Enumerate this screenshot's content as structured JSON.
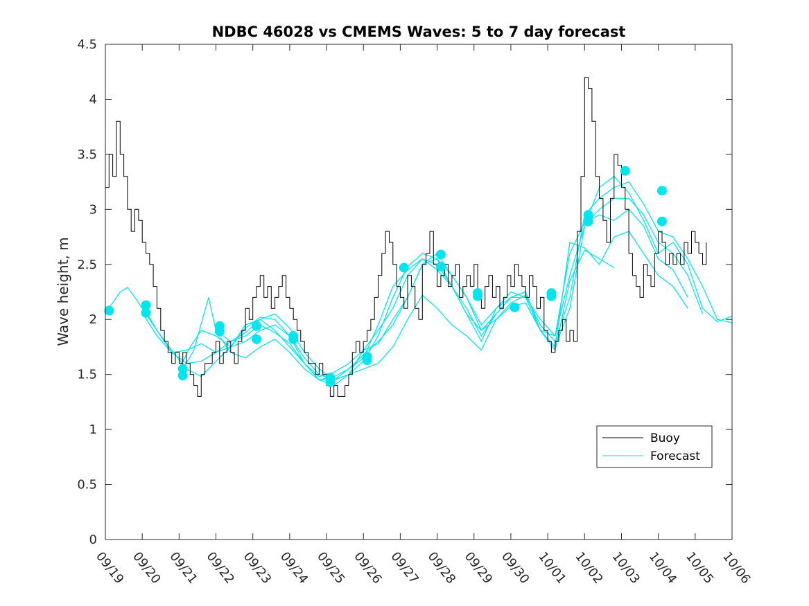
{
  "chart_data": {
    "type": "line",
    "title": "NDBC 46028 vs CMEMS Waves: 5 to 7 day forecast",
    "xlabel": "",
    "ylabel": "Wave height, m",
    "ylim": [
      0,
      4.5
    ],
    "xlim": [
      0,
      17
    ],
    "yticks": [
      0,
      0.5,
      1,
      1.5,
      2,
      2.5,
      3,
      3.5,
      4,
      4.5
    ],
    "ytick_labels": [
      "0",
      "0.5",
      "1",
      "1.5",
      "2",
      "2.5",
      "3",
      "3.5",
      "4",
      "4.5"
    ],
    "xtick_labels": [
      "09/19",
      "09/20",
      "09/21",
      "09/22",
      "09/23",
      "09/24",
      "09/25",
      "09/26",
      "09/27",
      "09/28",
      "09/29",
      "09/30",
      "10/01",
      "10/02",
      "10/03",
      "10/04",
      "10/05",
      "10/06"
    ],
    "grid": false,
    "legend": {
      "position": "lower-right",
      "entries": [
        "Buoy",
        "Forecast"
      ]
    },
    "colors": {
      "buoy": "#000000",
      "forecast": "#00e6ee"
    },
    "buoy": {
      "name": "Buoy",
      "x": [
        0.0,
        0.1,
        0.2,
        0.3,
        0.4,
        0.5,
        0.6,
        0.7,
        0.8,
        0.9,
        1.0,
        1.1,
        1.2,
        1.3,
        1.4,
        1.5,
        1.6,
        1.7,
        1.8,
        1.9,
        2.0,
        2.1,
        2.2,
        2.3,
        2.4,
        2.5,
        2.6,
        2.7,
        2.8,
        2.9,
        3.0,
        3.1,
        3.2,
        3.3,
        3.4,
        3.5,
        3.6,
        3.7,
        3.8,
        3.9,
        4.0,
        4.1,
        4.2,
        4.3,
        4.4,
        4.5,
        4.6,
        4.7,
        4.8,
        4.9,
        5.0,
        5.1,
        5.2,
        5.3,
        5.4,
        5.5,
        5.6,
        5.7,
        5.8,
        5.9,
        6.0,
        6.1,
        6.2,
        6.3,
        6.4,
        6.5,
        6.6,
        6.7,
        6.8,
        6.9,
        7.0,
        7.1,
        7.2,
        7.3,
        7.4,
        7.5,
        7.6,
        7.7,
        7.8,
        7.9,
        8.0,
        8.1,
        8.2,
        8.3,
        8.4,
        8.5,
        8.6,
        8.7,
        8.8,
        8.9,
        9.0,
        9.1,
        9.2,
        9.3,
        9.4,
        9.5,
        9.6,
        9.7,
        9.8,
        9.9,
        10.0,
        10.1,
        10.2,
        10.3,
        10.4,
        10.5,
        10.6,
        10.7,
        10.8,
        10.9,
        11.0,
        11.1,
        11.2,
        11.3,
        11.4,
        11.5,
        11.6,
        11.7,
        11.8,
        11.9,
        12.0,
        12.1,
        12.2,
        12.3,
        12.4,
        12.5,
        12.6,
        12.7,
        12.8,
        12.9,
        13.0,
        13.1,
        13.2,
        13.3,
        13.4,
        13.5,
        13.6,
        13.7,
        13.8,
        13.9,
        14.0,
        14.1,
        14.2,
        14.3,
        14.4,
        14.5,
        14.6,
        14.7,
        14.8,
        14.9,
        15.0,
        15.1,
        15.2,
        15.3,
        15.4,
        15.5,
        15.6,
        15.7,
        15.8,
        15.9,
        16.0,
        16.1,
        16.2,
        16.3
      ],
      "values": [
        3.2,
        3.5,
        3.3,
        3.8,
        3.5,
        3.3,
        3.0,
        2.8,
        3.0,
        2.9,
        2.7,
        2.6,
        2.5,
        2.3,
        2.1,
        1.9,
        1.8,
        1.7,
        1.6,
        1.7,
        1.6,
        1.7,
        1.6,
        1.5,
        1.4,
        1.3,
        1.5,
        1.6,
        1.6,
        1.7,
        1.8,
        1.6,
        1.7,
        1.8,
        1.7,
        1.6,
        1.8,
        1.9,
        2.1,
        2.0,
        2.2,
        2.3,
        2.4,
        2.2,
        2.3,
        2.1,
        2.2,
        2.3,
        2.4,
        2.2,
        2.1,
        2.0,
        1.9,
        1.8,
        1.7,
        1.6,
        1.6,
        1.5,
        1.6,
        1.5,
        1.4,
        1.3,
        1.4,
        1.3,
        1.3,
        1.4,
        1.5,
        1.7,
        1.8,
        1.7,
        1.8,
        1.9,
        2.0,
        2.2,
        2.4,
        2.6,
        2.8,
        2.7,
        2.5,
        2.3,
        2.2,
        2.1,
        2.4,
        2.3,
        2.1,
        2.0,
        2.5,
        2.6,
        2.8,
        2.5,
        2.3,
        2.4,
        2.5,
        2.3,
        2.4,
        2.5,
        2.2,
        2.3,
        2.4,
        2.3,
        2.5,
        2.2,
        2.1,
        2.3,
        2.4,
        2.2,
        2.3,
        2.1,
        2.2,
        2.4,
        2.3,
        2.5,
        2.4,
        2.3,
        2.2,
        2.4,
        2.3,
        2.1,
        2.2,
        1.9,
        1.8,
        1.7,
        1.8,
        1.9,
        2.0,
        1.8,
        1.9,
        1.8,
        2.8,
        3.3,
        4.2,
        4.1,
        3.8,
        3.3,
        3.1,
        2.9,
        2.7,
        3.1,
        3.5,
        3.4,
        3.2,
        3.0,
        2.6,
        2.4,
        2.3,
        2.2,
        2.5,
        2.4,
        2.3,
        2.6,
        2.8,
        2.7,
        2.5,
        2.6,
        2.5,
        2.6,
        2.5,
        2.7,
        2.6,
        2.8,
        2.7,
        2.6,
        2.5,
        2.7
      ]
    },
    "forecast": {
      "name": "Forecast",
      "series": [
        {
          "x": [
            0.0,
            0.2,
            0.4,
            0.6,
            0.8,
            1.0,
            1.4,
            1.8,
            2.2,
            2.6,
            3.0,
            3.4,
            3.8,
            4.2,
            4.6,
            5.0,
            5.4,
            5.8,
            6.2,
            6.6,
            7.0,
            7.4,
            7.8,
            8.2,
            8.6,
            9.0,
            9.4,
            9.8,
            10.2,
            10.6,
            11.0,
            11.4,
            11.8,
            12.2,
            12.6,
            13.0,
            13.4,
            13.8,
            14.2,
            14.6,
            15.0,
            15.4,
            15.8,
            16.2,
            16.6,
            17.0
          ],
          "values": [
            2.08,
            2.15,
            2.25,
            2.29,
            2.2,
            2.1,
            1.9,
            1.72,
            1.55,
            1.48,
            1.62,
            1.75,
            1.92,
            2.02,
            2.0,
            1.85,
            1.6,
            1.45,
            1.48,
            1.55,
            1.65,
            1.95,
            2.3,
            2.45,
            2.55,
            2.5,
            2.3,
            2.05,
            1.9,
            2.05,
            2.2,
            2.25,
            1.9,
            1.75,
            2.1,
            2.85,
            3.2,
            3.3,
            3.15,
            2.9,
            2.6,
            2.7,
            2.5,
            2.1,
            1.98,
            2.03
          ]
        },
        {
          "x": [
            1.0,
            1.4,
            1.8,
            2.2,
            2.6,
            3.0,
            3.4,
            3.8,
            4.2,
            4.6,
            5.0,
            5.4,
            5.8,
            6.2,
            6.6,
            7.0,
            7.4,
            7.8,
            8.2,
            8.6,
            9.0,
            9.4,
            9.8,
            10.2,
            10.6,
            11.0,
            11.4,
            11.8,
            12.2,
            12.6,
            13.0,
            13.4,
            13.8,
            14.2,
            14.6,
            15.0,
            15.4,
            15.8,
            16.2,
            16.6,
            17.0
          ],
          "values": [
            2.13,
            1.9,
            1.7,
            1.6,
            1.62,
            1.7,
            1.8,
            1.88,
            2.0,
            2.05,
            1.92,
            1.7,
            1.55,
            1.45,
            1.5,
            1.62,
            1.85,
            2.2,
            2.48,
            2.6,
            2.55,
            2.4,
            2.2,
            1.9,
            2.0,
            2.15,
            2.22,
            1.95,
            1.8,
            2.2,
            2.95,
            3.1,
            3.2,
            3.25,
            3.05,
            2.8,
            2.75,
            2.55,
            2.3,
            2.0,
            1.97
          ]
        },
        {
          "x": [
            1.0,
            1.4,
            1.8,
            2.2,
            2.6,
            3.0,
            3.4,
            3.8,
            4.2,
            4.6,
            5.0,
            5.4,
            5.8,
            6.2,
            6.6,
            7.0,
            7.4,
            7.8,
            8.2,
            8.6,
            9.0,
            9.4,
            9.8,
            10.2,
            10.6,
            11.0,
            11.4,
            11.8,
            12.2,
            12.6,
            13.0,
            13.4,
            13.8,
            14.2,
            14.6,
            15.0,
            15.4,
            15.8,
            16.2
          ],
          "values": [
            2.06,
            1.85,
            1.7,
            1.72,
            1.78,
            1.7,
            1.75,
            1.95,
            2.0,
            1.9,
            1.75,
            1.6,
            1.48,
            1.52,
            1.6,
            1.72,
            1.9,
            2.1,
            2.4,
            2.55,
            2.45,
            2.3,
            2.1,
            1.85,
            2.05,
            2.2,
            2.2,
            2.0,
            1.85,
            2.4,
            2.85,
            3.0,
            3.1,
            3.1,
            2.95,
            2.7,
            2.6,
            2.4,
            2.05
          ]
        },
        {
          "x": [
            2.0,
            2.3,
            2.6,
            3.0,
            3.4,
            3.8,
            4.2,
            4.6,
            5.0,
            5.4,
            5.8,
            6.2,
            6.6,
            7.0,
            7.4,
            7.8,
            8.2,
            8.6,
            9.0,
            9.4,
            9.8,
            10.2,
            10.6,
            11.0,
            11.4,
            11.8,
            12.2,
            12.6,
            13.0,
            13.4,
            13.8,
            14.2,
            14.6,
            15.0,
            15.4,
            15.8
          ],
          "values": [
            1.55,
            1.75,
            1.9,
            1.85,
            1.75,
            1.8,
            1.9,
            1.95,
            1.85,
            1.65,
            1.5,
            1.45,
            1.55,
            1.68,
            1.8,
            1.95,
            2.2,
            2.5,
            2.6,
            2.4,
            2.2,
            1.95,
            2.1,
            2.25,
            2.2,
            1.9,
            1.85,
            2.6,
            2.88,
            2.95,
            2.9,
            3.0,
            2.85,
            2.55,
            2.45,
            2.2
          ]
        },
        {
          "x": [
            2.0,
            2.4,
            2.8,
            3.0,
            3.4,
            3.8,
            4.2,
            4.6,
            5.0,
            5.4,
            5.8,
            6.2,
            6.6,
            7.0,
            7.4,
            7.8,
            8.2,
            8.6,
            9.0,
            9.4,
            9.8,
            10.2,
            10.6,
            11.0,
            11.4,
            11.8,
            12.2,
            12.6,
            13.0,
            13.4,
            13.8,
            14.2,
            14.6,
            15.0,
            15.4,
            15.8
          ],
          "values": [
            1.49,
            1.72,
            2.2,
            1.9,
            1.8,
            1.85,
            1.95,
            1.88,
            1.78,
            1.6,
            1.45,
            1.4,
            1.5,
            1.72,
            1.78,
            2.0,
            2.2,
            2.5,
            2.55,
            2.3,
            2.05,
            1.8,
            2.1,
            2.2,
            2.25,
            1.9,
            1.75,
            2.7,
            2.65,
            2.5,
            2.75,
            2.8,
            2.6,
            2.4,
            2.3,
            2.1
          ]
        },
        {
          "x": [
            3.0,
            3.4,
            3.8,
            4.2,
            4.6,
            5.0,
            5.4,
            5.8,
            6.2,
            6.6,
            7.0,
            7.4,
            7.8,
            8.2,
            8.6,
            9.0,
            9.4,
            9.8,
            10.2,
            10.6,
            11.0,
            11.4,
            11.8,
            12.2,
            12.6,
            13.0,
            13.4,
            13.8
          ],
          "values": [
            1.89,
            1.7,
            1.65,
            1.75,
            1.82,
            1.7,
            1.55,
            1.45,
            1.45,
            1.5,
            1.55,
            1.6,
            1.75,
            2.0,
            2.22,
            2.1,
            1.95,
            1.85,
            1.72,
            2.0,
            2.12,
            2.15,
            1.9,
            1.72,
            2.35,
            2.63,
            2.55,
            2.47
          ]
        }
      ],
      "markers": {
        "x": [
          0.1,
          1.1,
          1.1,
          2.1,
          2.1,
          3.1,
          3.1,
          4.1,
          4.1,
          5.1,
          5.1,
          6.1,
          6.1,
          7.1,
          7.1,
          8.1,
          9.1,
          9.1,
          10.1,
          10.1,
          11.1,
          12.1,
          12.1,
          13.1,
          13.1,
          14.1,
          15.1,
          15.1
        ],
        "values": [
          2.08,
          2.13,
          2.06,
          1.55,
          1.49,
          1.94,
          1.89,
          1.94,
          1.82,
          1.85,
          1.82,
          1.47,
          1.43,
          1.66,
          1.63,
          2.47,
          2.59,
          2.48,
          2.24,
          2.21,
          2.11,
          2.24,
          2.21,
          2.95,
          2.89,
          3.35,
          3.17,
          2.89
        ]
      }
    }
  }
}
